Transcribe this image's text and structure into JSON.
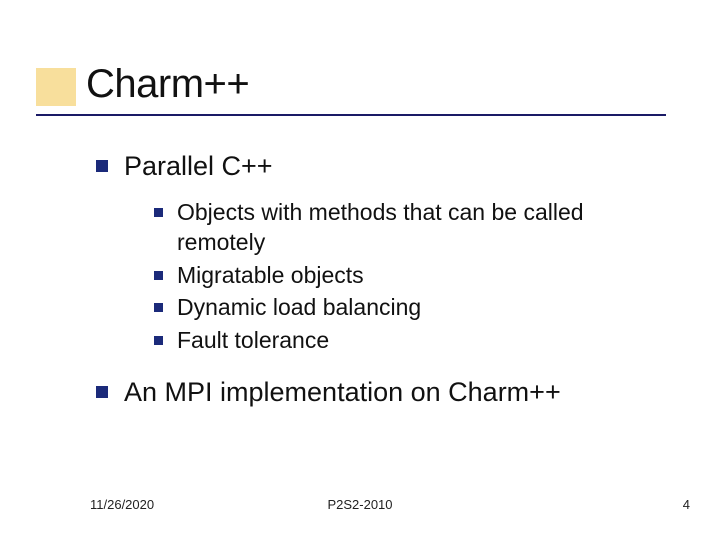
{
  "colors": {
    "accent_box": "#f2c54a",
    "accent_opacity": 0.55,
    "underline": "#1a1a66",
    "bullet": "#1b2a7a",
    "text": "#111111",
    "background": "#ffffff"
  },
  "typography": {
    "font_family": "Verdana",
    "title_fontsize": 40,
    "lvl1_fontsize": 27,
    "lvl2_fontsize": 23,
    "footer_fontsize": 13
  },
  "title": "Charm++",
  "bullets": [
    {
      "text": "Parallel C++",
      "children": [
        "Objects with methods that can be called remotely",
        "Migratable objects",
        "Dynamic load balancing",
        "Fault tolerance"
      ]
    },
    {
      "text": "An MPI implementation on Charm++",
      "children": []
    }
  ],
  "footer": {
    "date": "11/26/2020",
    "center": "P2S2-2010",
    "page": "4"
  }
}
